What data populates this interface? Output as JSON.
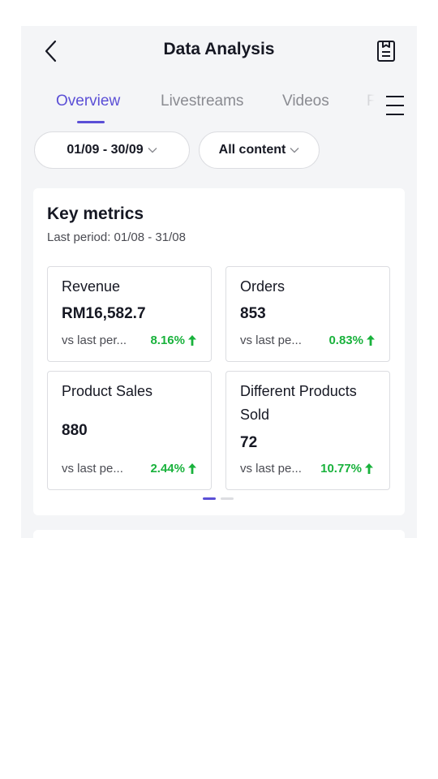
{
  "header": {
    "title": "Data Analysis",
    "back_icon": "chevron-left-icon",
    "save_icon": "document-icon"
  },
  "tabs": [
    {
      "label": "Overview",
      "active": true
    },
    {
      "label": "Livestreams",
      "active": false
    },
    {
      "label": "Videos",
      "active": false
    },
    {
      "label": "F",
      "active": false
    }
  ],
  "menu_icon": "hamburger-menu-icon",
  "filters": {
    "date_range": "01/09 - 30/09",
    "content": "All content"
  },
  "key_metrics": {
    "title": "Key metrics",
    "last_period": "Last period: 01/08 - 31/08",
    "metrics": [
      {
        "name": "Revenue",
        "value": "RM16,582.7",
        "compare": "vs last per...",
        "change": "8.16%",
        "direction": "up"
      },
      {
        "name": "Orders",
        "value": "853",
        "compare": "vs last pe...",
        "change": "0.83%",
        "direction": "up"
      },
      {
        "name": "Product Sales",
        "value": "880",
        "compare": "vs last pe...",
        "change": "2.44%",
        "direction": "up"
      },
      {
        "name": "Different Products Sold",
        "value": "72",
        "compare": "vs last pe...",
        "change": "10.77%",
        "direction": "up"
      }
    ],
    "page_indicator": {
      "pages": 2,
      "current": 1
    }
  },
  "colors": {
    "accent": "#5b4fd6",
    "positive": "#19b23c",
    "background": "#f4f5f7"
  }
}
